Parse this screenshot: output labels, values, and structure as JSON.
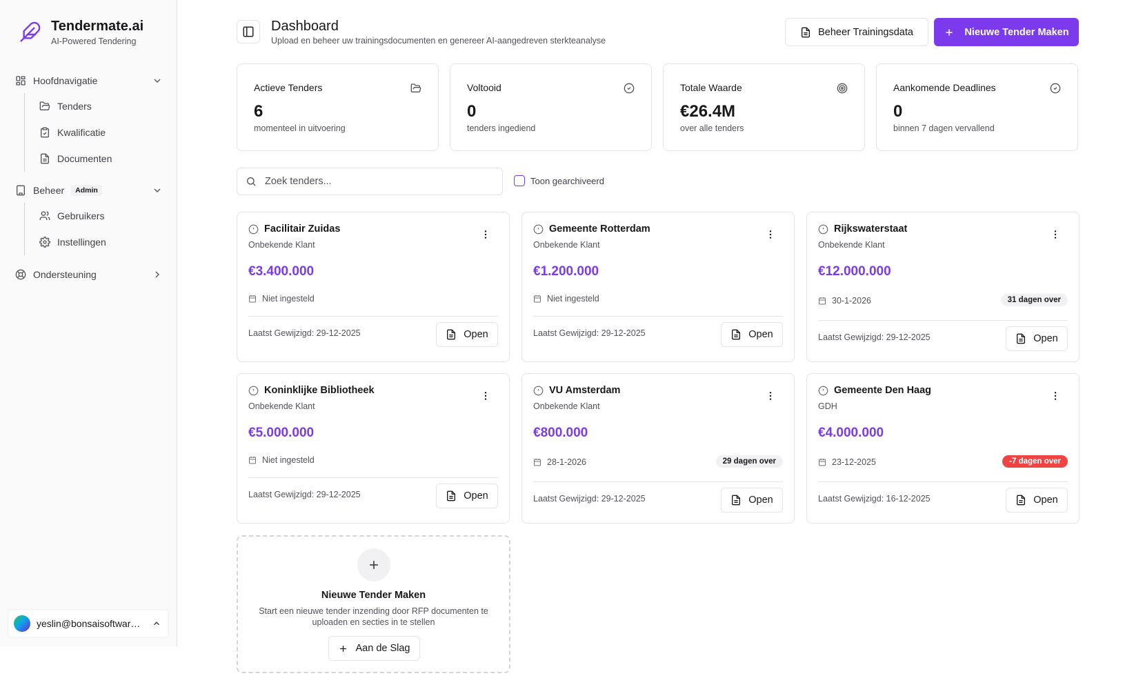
{
  "brand": {
    "name": "Tendermate.ai",
    "tagline": "AI-Powered Tendering",
    "icon": "feather-icon",
    "accent": "#7c3aed"
  },
  "sidebar": {
    "groups": [
      {
        "label": "Hoofdnavigatie",
        "icon": "grid-icon",
        "items": [
          {
            "label": "Tenders",
            "icon": "folder-open-icon"
          },
          {
            "label": "Kwalificatie",
            "icon": "clipboard-check-icon"
          },
          {
            "label": "Documenten",
            "icon": "file-text-icon"
          }
        ]
      },
      {
        "label": "Beheer",
        "badge": "Admin",
        "icon": "building-icon",
        "items": [
          {
            "label": "Gebruikers",
            "icon": "users-icon"
          },
          {
            "label": "Instellingen",
            "icon": "settings-icon"
          }
        ]
      },
      {
        "label": "Ondersteuning",
        "icon": "life-buoy-icon"
      }
    ],
    "user": {
      "email": "yeslin@bonsaisoftware.nl"
    }
  },
  "header": {
    "title": "Dashboard",
    "subtitle": "Upload en beheer uw trainingsdocumenten en genereer AI-aangedreven sterkteanalyse",
    "manage_button": "Beheer Trainingsdata",
    "new_button": "Nieuwe Tender Maken"
  },
  "stats": [
    {
      "label": "Actieve Tenders",
      "value": "6",
      "desc": "momenteel in uitvoering",
      "icon": "folder-icon"
    },
    {
      "label": "Voltooid",
      "value": "0",
      "desc": "tenders ingediend",
      "icon": "check-circle-icon"
    },
    {
      "label": "Totale Waarde",
      "value": "€26.4M",
      "desc": "over alle tenders",
      "icon": "target-icon"
    },
    {
      "label": "Aankomende Deadlines",
      "value": "0",
      "desc": "binnen 7 dagen vervallend",
      "icon": "check-circle-icon"
    }
  ],
  "search": {
    "placeholder": "Zoek tenders...",
    "archive_label": "Toon gearchiveerd"
  },
  "tenders": [
    {
      "name": "Facilitair Zuidas",
      "client": "Onbekende Klant",
      "value": "€3.400.000",
      "date": "Niet ingesteld",
      "days": "",
      "modified": "Laatst Gewijzigd: 29-12-2025",
      "open": "Open"
    },
    {
      "name": "Gemeente Rotterdam",
      "client": "Onbekende Klant",
      "value": "€1.200.000",
      "date": "Niet ingesteld",
      "days": "",
      "modified": "Laatst Gewijzigd: 29-12-2025",
      "open": "Open"
    },
    {
      "name": "Rijkswaterstaat",
      "client": "Onbekende Klant",
      "value": "€12.000.000",
      "date": "30-1-2026",
      "days": "31 dagen over",
      "modified": "Laatst Gewijzigd: 29-12-2025",
      "open": "Open"
    },
    {
      "name": "Koninklijke Bibliotheek",
      "client": "Onbekende Klant",
      "value": "€5.000.000",
      "date": "Niet ingesteld",
      "days": "",
      "modified": "Laatst Gewijzigd: 29-12-2025",
      "open": "Open"
    },
    {
      "name": "VU Amsterdam",
      "client": "Onbekende Klant",
      "value": "€800.000",
      "date": "28-1-2026",
      "days": "29 dagen over",
      "modified": "Laatst Gewijzigd: 29-12-2025",
      "open": "Open"
    },
    {
      "name": "Gemeente Den Haag",
      "client": "GDH",
      "value": "€4.000.000",
      "date": "23-12-2025",
      "days": "-7 dagen over",
      "overdue": true,
      "modified": "Laatst Gewijzigd: 16-12-2025",
      "open": "Open"
    }
  ],
  "new_tender": {
    "title": "Nieuwe Tender Maken",
    "desc": "Start een nieuwe tender inzending door RFP documenten te uploaden en secties in te stellen",
    "button": "Aan de Slag"
  },
  "colors": {
    "accent": "#7c3aed",
    "danger": "#ef4444",
    "border": "#e4e4e7"
  }
}
